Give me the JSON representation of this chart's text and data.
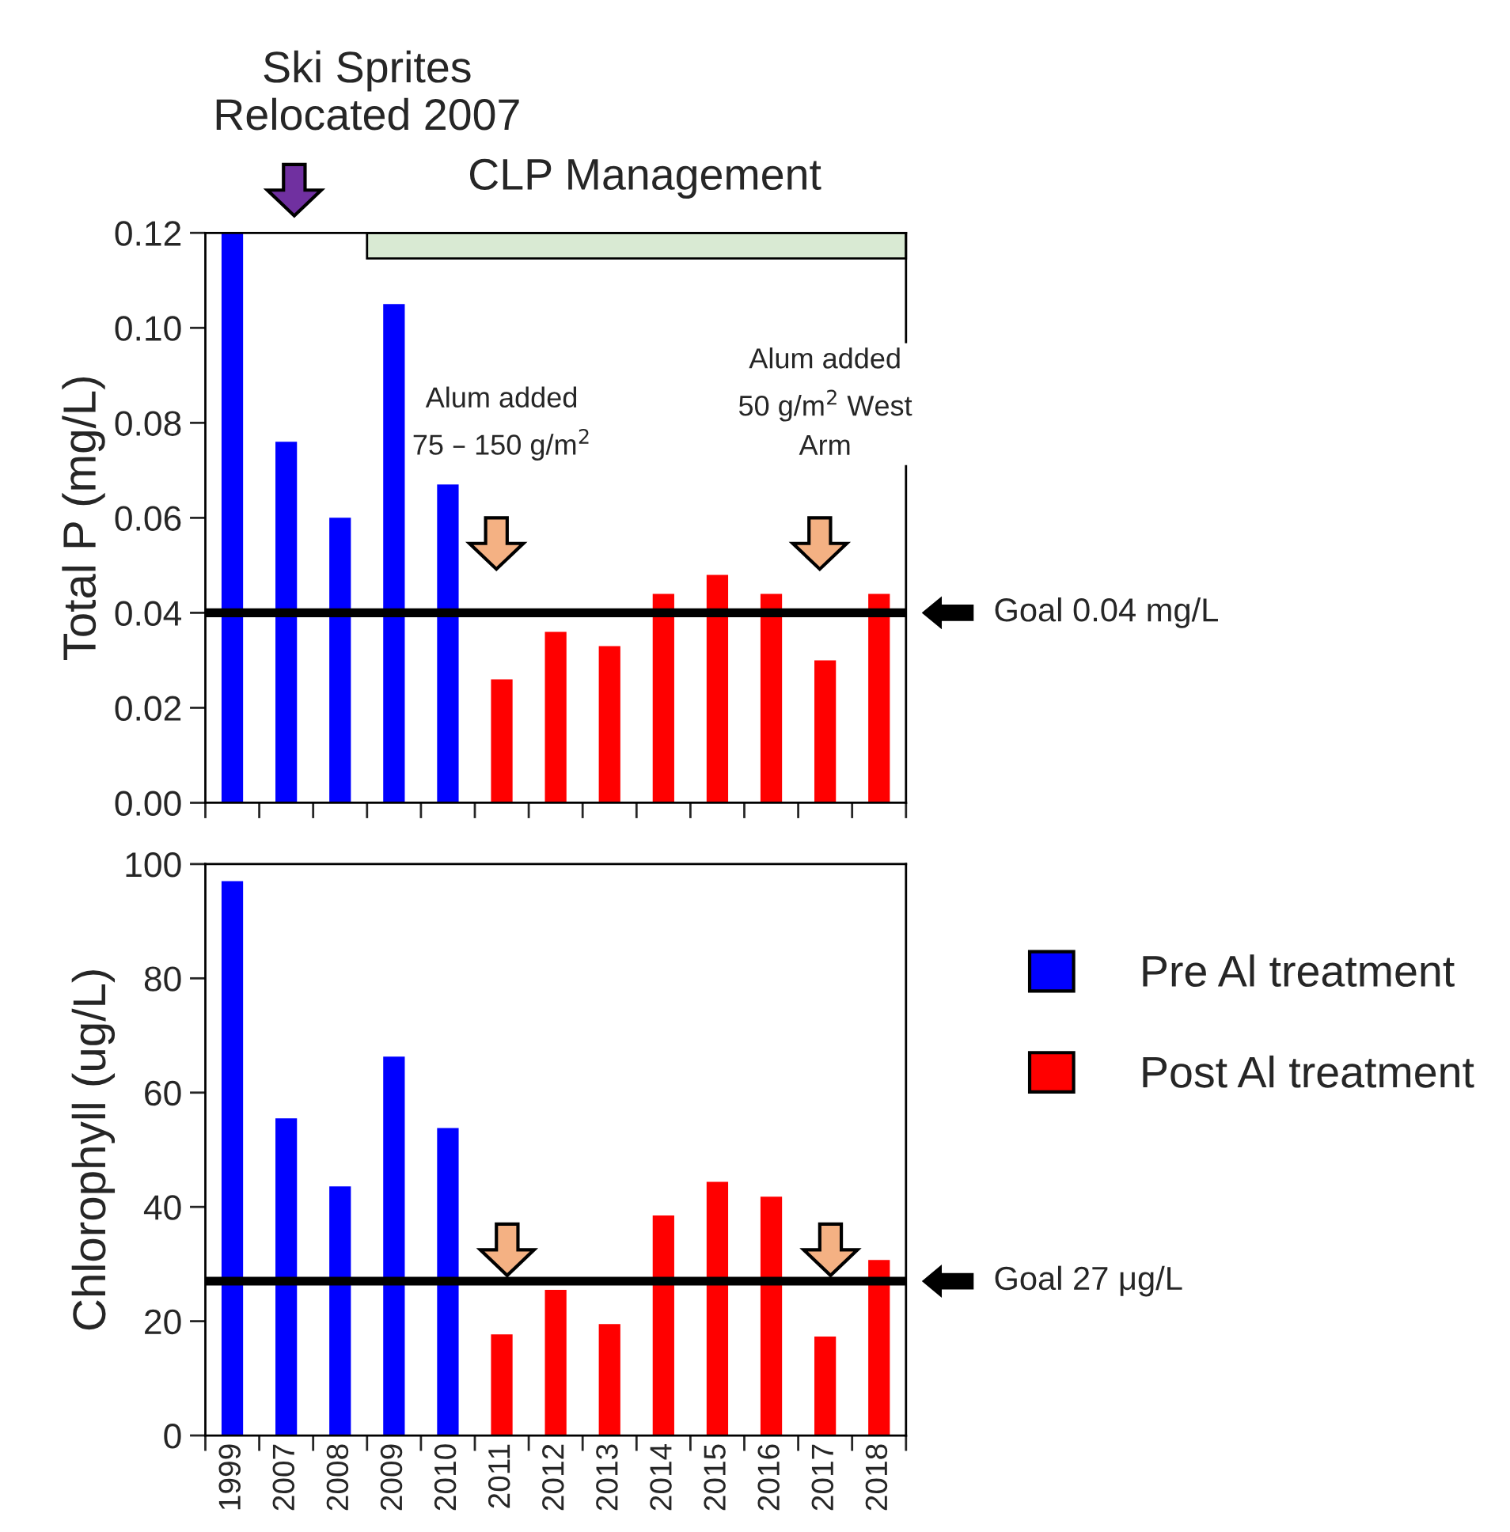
{
  "chart_data": [
    {
      "type": "bar",
      "ylabel": "Total P (mg/L)",
      "categories": [
        "1999",
        "2007",
        "2008",
        "2009",
        "2010",
        "2011",
        "2012",
        "2013",
        "2014",
        "2015",
        "2016",
        "2017",
        "2018"
      ],
      "series": [
        {
          "color": "#0000ff",
          "values": [
            0.12,
            0.076,
            0.06,
            0.105,
            0.067,
            null,
            null,
            null,
            null,
            null,
            null,
            null,
            null
          ]
        },
        {
          "color": "#ff0000",
          "values": [
            null,
            null,
            null,
            null,
            null,
            0.026,
            0.036,
            0.033,
            0.044,
            0.048,
            0.044,
            0.03,
            0.044
          ]
        }
      ],
      "ylim": [
        0,
        0.12
      ],
      "yticks": [
        {
          "value": 0,
          "label": "0.00"
        },
        {
          "value": 0.02,
          "label": "0.02"
        },
        {
          "value": 0.04,
          "label": "0.04"
        },
        {
          "value": 0.06,
          "label": "0.06"
        },
        {
          "value": 0.08,
          "label": "0.08"
        },
        {
          "value": 0.1,
          "label": "0.10"
        },
        {
          "value": 0.12,
          "label": "0.12"
        }
      ],
      "tick_labels": "y",
      "grid": false,
      "legend": false,
      "ref_lines": [
        {
          "axis": "y",
          "value": 0.04,
          "label": "Goal 0.04 mg/L",
          "color": "#000000"
        }
      ],
      "bands": [
        {
          "axis": "x",
          "from": "2009",
          "to": "2018",
          "label": "CLP Management",
          "color": "#d9ead3"
        }
      ],
      "annotations": [
        "Ski Sprites\nRelocated 2007",
        "Alum added\n75 – 150 g/m$^{2}$",
        "Alum added\n50 g/m$^{2}$ West\nArm"
      ]
    },
    {
      "type": "bar",
      "ylabel": "Chlorophyll (ug/L)",
      "categories": [
        "1999",
        "2007",
        "2008",
        "2009",
        "2010",
        "2011",
        "2012",
        "2013",
        "2014",
        "2015",
        "2016",
        "2017",
        "2018"
      ],
      "series": [
        {
          "name": "Pre Al treatment",
          "color": "#0000ff",
          "values": [
            97,
            55.5,
            43.6,
            66.3,
            53.8,
            null,
            null,
            null,
            null,
            null,
            null,
            null,
            null
          ]
        },
        {
          "name": "Post Al treatment",
          "color": "#ff0000",
          "values": [
            null,
            null,
            null,
            null,
            null,
            17.7,
            25.5,
            19.5,
            38.5,
            44.4,
            41.8,
            17.3,
            30.7
          ]
        }
      ],
      "ylim": [
        0,
        100
      ],
      "yticks": [
        0,
        20,
        40,
        60,
        80,
        100
      ],
      "grid": false,
      "legend": "right",
      "ref_lines": [
        {
          "axis": "y",
          "value": 27,
          "label": "Goal 27 μg/L",
          "color": "#000000"
        }
      ]
    }
  ]
}
